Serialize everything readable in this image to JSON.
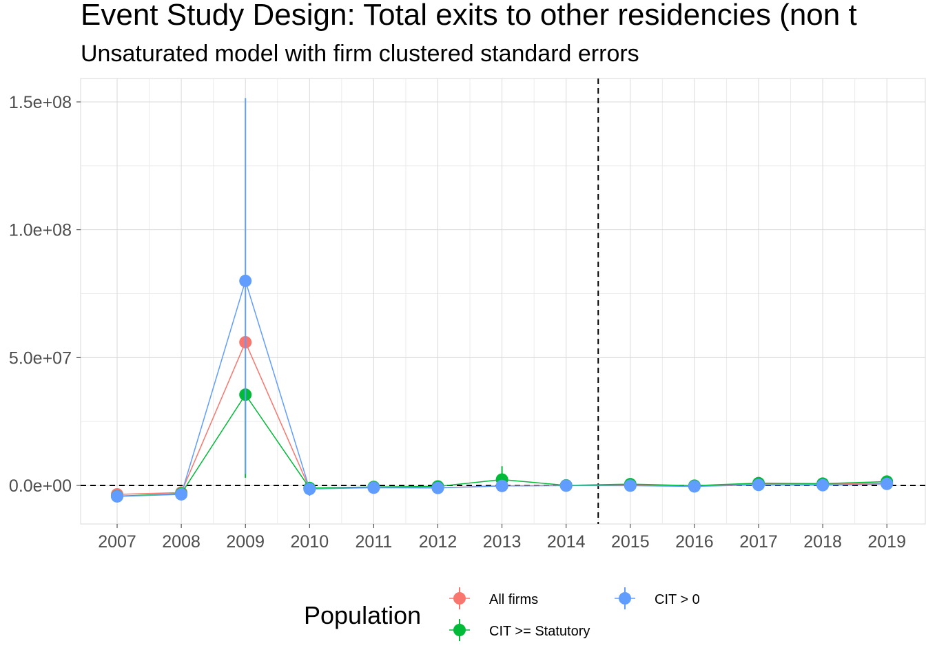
{
  "chart_data": {
    "type": "line",
    "title": "Event Study Design: Total exits to other residencies (non t",
    "subtitle": "Unsaturated model with firm clustered standard errors",
    "xlabel": "",
    "ylabel": "",
    "categories": [
      "2007",
      "2008",
      "2009",
      "2010",
      "2011",
      "2012",
      "2013",
      "2014",
      "2015",
      "2016",
      "2017",
      "2018",
      "2019"
    ],
    "y_ticks": [
      0,
      50000000,
      100000000,
      150000000
    ],
    "y_tick_labels": [
      "0.0e+00",
      "5.0e+07",
      "1.0e+08",
      "1.5e+08"
    ],
    "ylim": [
      -15000000,
      160000000
    ],
    "grid": true,
    "reference_lines": {
      "horizontal_y": 0,
      "vertical_between": [
        "2014",
        "2015"
      ],
      "style": "dashed"
    },
    "legend": {
      "title": "Population",
      "position": "bottom"
    },
    "series": [
      {
        "name": "All firms",
        "color": "#F8766D",
        "values": [
          -3500000,
          -2800000,
          56000000,
          -1200000,
          -800000,
          -900000,
          -200000,
          0,
          200000,
          -200000,
          600000,
          400000,
          900000
        ],
        "lower": [
          -3500000,
          -2800000,
          56000000,
          -1200000,
          -800000,
          -900000,
          -200000,
          0,
          200000,
          -200000,
          600000,
          400000,
          900000
        ],
        "upper": [
          -3500000,
          -2800000,
          56000000,
          -1200000,
          -800000,
          -900000,
          -200000,
          0,
          200000,
          -200000,
          600000,
          400000,
          900000
        ]
      },
      {
        "name": "CIT >= Statutory",
        "color": "#00BA38",
        "values": [
          -4200000,
          -3200000,
          35500000,
          -1000000,
          -600000,
          -400000,
          2300000,
          0,
          500000,
          -100000,
          900000,
          700000,
          1500000
        ],
        "lower": [
          -4200000,
          -3200000,
          3000000,
          -4000000,
          -600000,
          -400000,
          -1000000,
          0,
          500000,
          -100000,
          900000,
          700000,
          1500000
        ],
        "upper": [
          -4200000,
          -3200000,
          35500000,
          1000000,
          -600000,
          -400000,
          7500000,
          0,
          500000,
          -100000,
          900000,
          700000,
          1500000
        ]
      },
      {
        "name": "CIT > 0",
        "color": "#619CFF",
        "values": [
          -4300000,
          -3500000,
          80000000,
          -1400000,
          -900000,
          -1000000,
          -200000,
          -100000,
          -100000,
          -400000,
          200000,
          100000,
          600000
        ],
        "lower": [
          -4300000,
          -3500000,
          4500000,
          -1400000,
          -900000,
          -1000000,
          -200000,
          -100000,
          -100000,
          -400000,
          200000,
          100000,
          600000
        ],
        "upper": [
          -4300000,
          -3500000,
          151500000,
          -1400000,
          -900000,
          -1000000,
          -200000,
          -100000,
          -100000,
          -400000,
          200000,
          100000,
          600000
        ]
      }
    ]
  }
}
